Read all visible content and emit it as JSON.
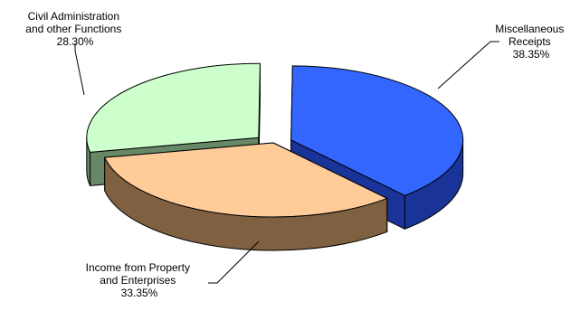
{
  "chart_data": {
    "type": "pie",
    "title": "",
    "categories": [
      "Miscellaneous Receipts",
      "Income from Property and Enterprises",
      "Civil Administration and other Functions"
    ],
    "values": [
      38.35,
      33.35,
      28.3
    ],
    "unit": "%",
    "slices": [
      {
        "label_lines": [
          "Miscellaneous",
          "Receipts"
        ],
        "value_text": "38.35%",
        "value": 38.35,
        "top_color": "#3366ff",
        "side_color": "#1a3399",
        "exploded": true
      },
      {
        "label_lines": [
          "Income from Property",
          "and Enterprises"
        ],
        "value_text": "33.35%",
        "value": 33.35,
        "top_color": "#ffcc99",
        "side_color": "#7f6040",
        "exploded": false
      },
      {
        "label_lines": [
          "Civil Administration",
          "and other Functions"
        ],
        "value_text": "28.30%",
        "value": 28.3,
        "top_color": "#ccffcc",
        "side_color": "#668866",
        "exploded": true
      }
    ],
    "style": "3d-exploded-pie",
    "legend": "none"
  }
}
